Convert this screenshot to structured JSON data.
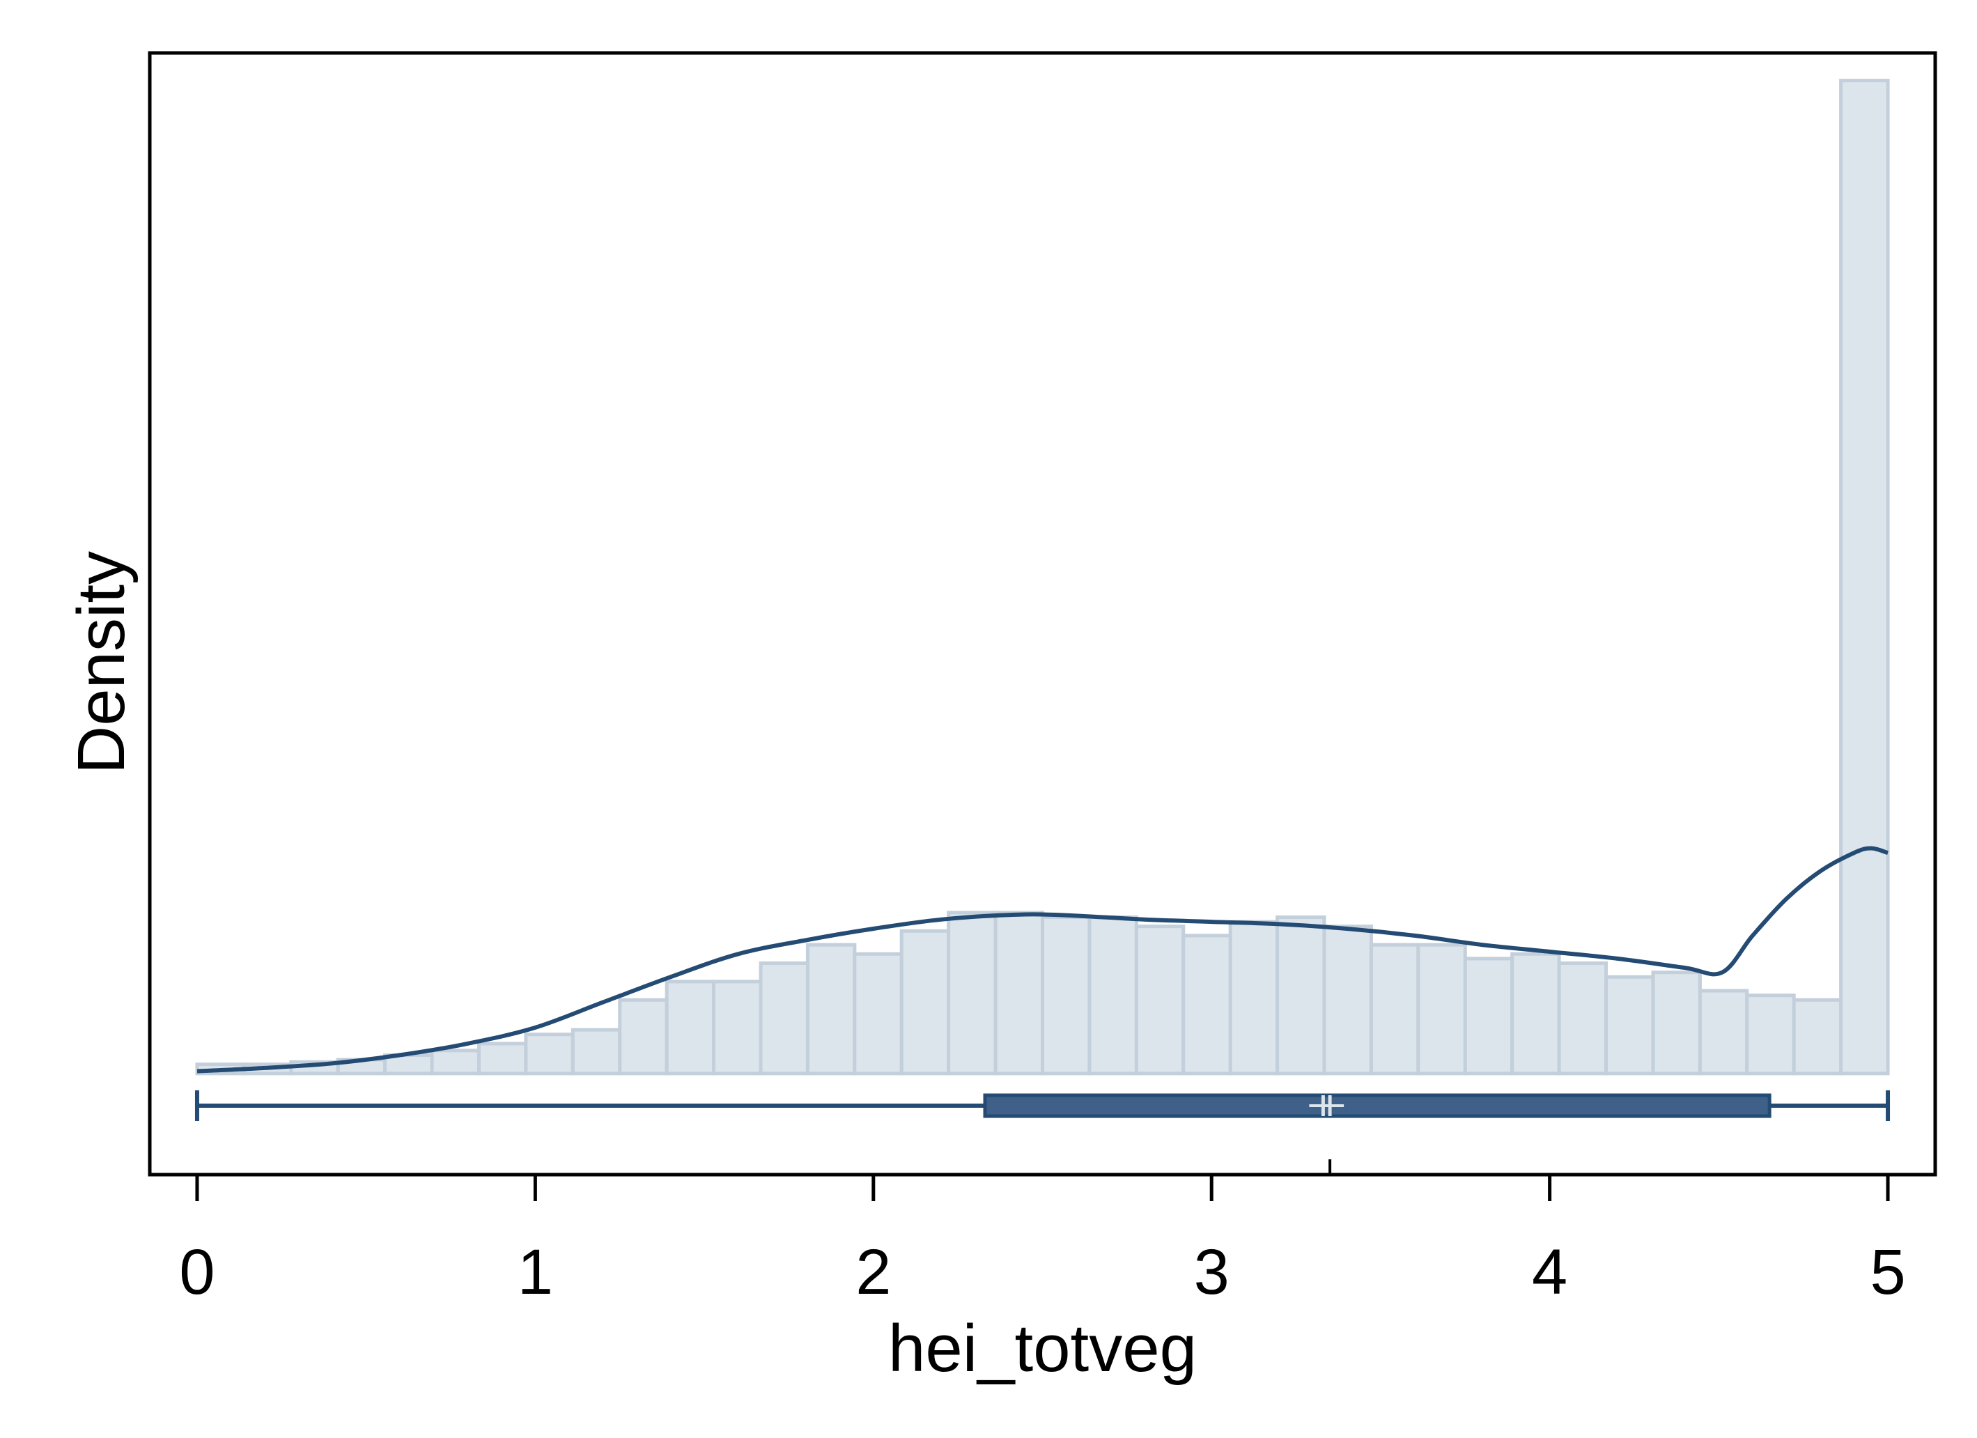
{
  "chart_data": {
    "type": "histogram",
    "xlabel": "hei_totveg",
    "ylabel": "Density",
    "xlim": [
      -0.14,
      5.14
    ],
    "ylim": [
      -0.22,
      2.22
    ],
    "x_ticks": [
      0,
      1,
      2,
      3,
      4,
      5
    ],
    "x_tick_labels": [
      "0",
      "1",
      "2",
      "3",
      "4",
      "5"
    ],
    "y_ticks_shown": false,
    "grid": false,
    "legend": "none",
    "bin_width": 0.1389,
    "bins": {
      "x_start": [
        0.0,
        0.1389,
        0.2778,
        0.4167,
        0.5556,
        0.6944,
        0.8333,
        0.9722,
        1.1111,
        1.25,
        1.3889,
        1.5278,
        1.6667,
        1.8056,
        1.9444,
        2.0833,
        2.2222,
        2.3611,
        2.5,
        2.6389,
        2.7778,
        2.9167,
        3.0556,
        3.1944,
        3.3333,
        3.4722,
        3.6111,
        3.75,
        3.8889,
        4.0278,
        4.1667,
        4.3056,
        4.4444,
        4.5833,
        4.7222,
        4.8611
      ],
      "density": [
        0.02,
        0.02,
        0.025,
        0.03,
        0.04,
        0.05,
        0.065,
        0.085,
        0.095,
        0.16,
        0.2,
        0.2,
        0.24,
        0.28,
        0.26,
        0.31,
        0.35,
        0.35,
        0.34,
        0.34,
        0.32,
        0.3,
        0.33,
        0.34,
        0.32,
        0.28,
        0.28,
        0.25,
        0.26,
        0.24,
        0.21,
        0.22,
        0.18,
        0.17,
        0.16,
        2.16
      ]
    },
    "kde": {
      "x": [
        0.0,
        0.2,
        0.4,
        0.6,
        0.8,
        1.0,
        1.2,
        1.4,
        1.6,
        1.8,
        2.0,
        2.2,
        2.4,
        2.55,
        2.8,
        3.0,
        3.2,
        3.4,
        3.6,
        3.8,
        4.0,
        4.2,
        4.4,
        4.51,
        4.6,
        4.7,
        4.8,
        4.9,
        4.95,
        5.0
      ],
      "density": [
        0.005,
        0.012,
        0.022,
        0.04,
        0.065,
        0.1,
        0.155,
        0.21,
        0.26,
        0.29,
        0.315,
        0.335,
        0.345,
        0.345,
        0.335,
        0.33,
        0.325,
        0.315,
        0.3,
        0.28,
        0.265,
        0.25,
        0.23,
        0.22,
        0.3,
        0.38,
        0.44,
        0.48,
        0.49,
        0.48
      ]
    },
    "boxplot": {
      "min": 0.0,
      "q1": 2.33,
      "median": 3.33,
      "mean": 3.35,
      "q3": 4.65,
      "max": 5.0,
      "position": -0.07
    },
    "colors": {
      "bar_fill": "#dde5ec",
      "bar_edge": "#c3cfda",
      "kde_line": "#234b73",
      "box_fill": "#3f6088",
      "box_edge": "#234b73",
      "axis": "#000000",
      "median_line": "#dde5ec"
    }
  }
}
